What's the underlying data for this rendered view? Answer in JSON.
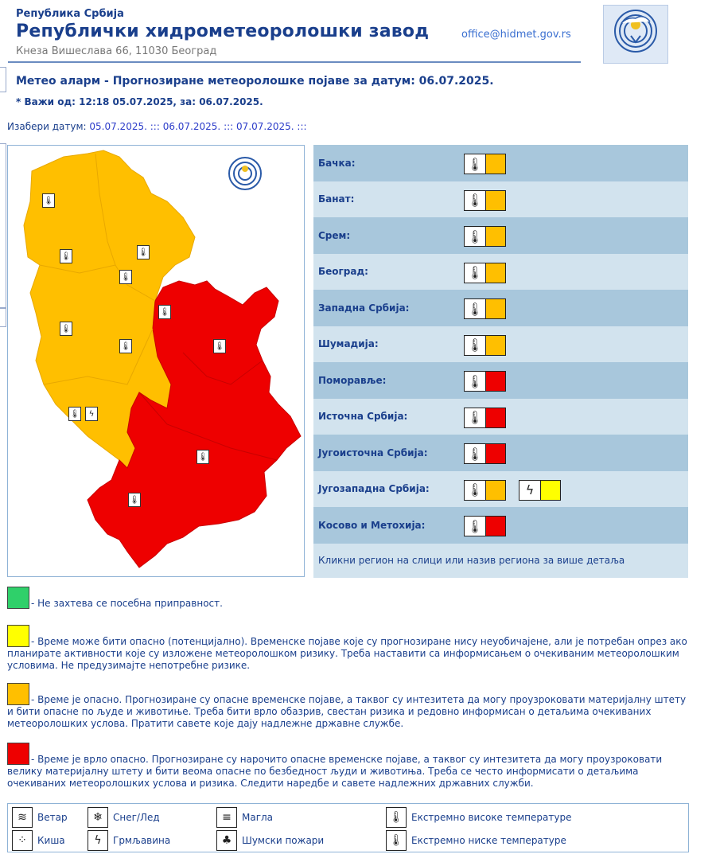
{
  "header": {
    "small_title": "Република Србија",
    "big_title": "Републички хидрометеоролошки завод",
    "address": "Кнеза Вишеслава 66, 11030 Београд",
    "email": "office@hidmet.gov.rs",
    "logo_icon": "rhmz-logo-icon"
  },
  "alert": {
    "title": "Метео аларм - Прогнозиране метеоролошке појаве за датум:  06.07.2025.",
    "valid": "* Важи од: 12:18 05.07.2025, за: 06.07.2025.",
    "date_label": "Изабери датум:",
    "dates": [
      "05.07.2025.",
      "06.07.2025.",
      "07.07.2025."
    ],
    "date_sep": ":::"
  },
  "colors": {
    "green": "#2fd06a",
    "yellow": "#ffff00",
    "orange": "#ffbf00",
    "red": "#ee0000"
  },
  "regions": [
    {
      "name": "Бачка:",
      "warnings": [
        {
          "icon": "thermometer-icon",
          "level": "orange"
        }
      ]
    },
    {
      "name": "Банат:",
      "warnings": [
        {
          "icon": "thermometer-icon",
          "level": "orange"
        }
      ]
    },
    {
      "name": "Срем:",
      "warnings": [
        {
          "icon": "thermometer-icon",
          "level": "orange"
        }
      ]
    },
    {
      "name": "Београд:",
      "warnings": [
        {
          "icon": "thermometer-icon",
          "level": "orange"
        }
      ]
    },
    {
      "name": "Западна Србија:",
      "warnings": [
        {
          "icon": "thermometer-icon",
          "level": "orange"
        }
      ]
    },
    {
      "name": "Шумадија:",
      "warnings": [
        {
          "icon": "thermometer-icon",
          "level": "orange"
        }
      ]
    },
    {
      "name": "Поморавље:",
      "warnings": [
        {
          "icon": "thermometer-icon",
          "level": "red"
        }
      ]
    },
    {
      "name": "Источна Србија:",
      "warnings": [
        {
          "icon": "thermometer-icon",
          "level": "red"
        }
      ]
    },
    {
      "name": "Југоисточна Србија:",
      "warnings": [
        {
          "icon": "thermometer-icon",
          "level": "red"
        }
      ]
    },
    {
      "name": "Југозападна Србија:",
      "warnings": [
        {
          "icon": "thermometer-icon",
          "level": "orange"
        },
        {
          "icon": "lightning-icon",
          "level": "yellow"
        }
      ]
    },
    {
      "name": "Косово и Метохија:",
      "warnings": [
        {
          "icon": "thermometer-icon",
          "level": "red"
        }
      ]
    }
  ],
  "region_footer": "Кликни регион на слици или назив региона за више детаља",
  "legend": [
    {
      "level": "green",
      "text": "- Не захтева се посебна приправност."
    },
    {
      "level": "yellow",
      "text": "- Време може бити опасно (потенцијално). Временске појаве које су прогнозиране нису неуобичајене, али је потребан опрез ако планирате активности које су изложене метеоролошком ризику. Треба наставити са информисањем о очекиваним метеоролошким условима. Не предузимајте непотребне ризике."
    },
    {
      "level": "orange",
      "text": "- Време је опасно. Прогнозиране су опасне временске појаве, а таквог су интезитета да могу проузроковати материјалну штету и бити опасне по људе и животиње. Треба бити врло обазрив, свестан ризика и редовно информисан о детаљима очекиваних метеоролошких услова. Пратити савете које дају надлежне државне службе."
    },
    {
      "level": "red",
      "text": "- Време је врло опасно. Прогнозиране су нарочито опасне временске појаве, а таквог су интезитета да могу проузроковати велику материјалну штету и бити веома опасне по безбедност људи и животиња. Треба се често информисати о детаљима очекиваних метеоролошких услова и ризика. Следити наредбе и савете надлежних државних служби."
    }
  ],
  "icon_legend": [
    {
      "icon": "wind-icon",
      "label": "Ветар"
    },
    {
      "icon": "snow-ice-icon",
      "label": "Снег/Лед"
    },
    {
      "icon": "fog-icon",
      "label": "Магла"
    },
    {
      "icon": "thermometer-high-icon",
      "label": "Екстремно високе температуре"
    },
    {
      "icon": "rain-icon",
      "label": "Киша"
    },
    {
      "icon": "lightning-icon",
      "label": "Грмљавина"
    },
    {
      "icon": "forest-fire-icon",
      "label": "Шумски пожари"
    },
    {
      "icon": "thermometer-low-icon",
      "label": "Екстремно ниске температуре"
    }
  ]
}
